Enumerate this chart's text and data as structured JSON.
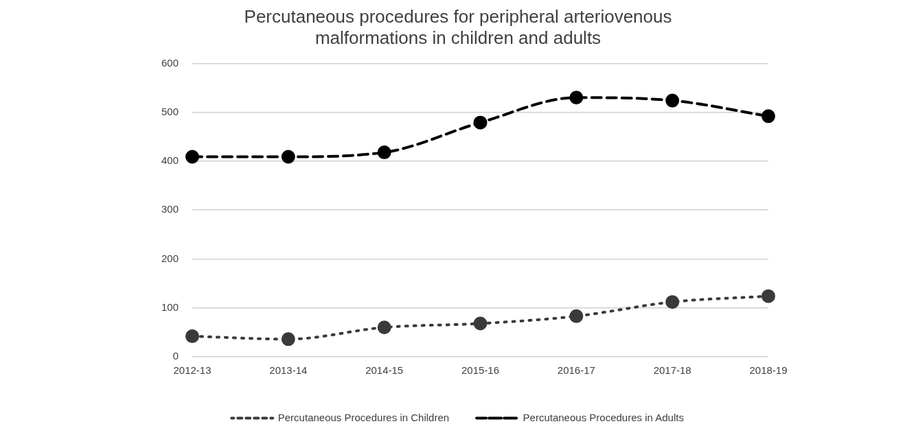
{
  "chart_data": {
    "type": "line",
    "title": "Percutaneous procedures for peripheral arteriovenous malformations in children and adults",
    "categories": [
      "2012-13",
      "2013-14",
      "2014-15",
      "2015-16",
      "2016-17",
      "2017-18",
      "2018-19"
    ],
    "series": [
      {
        "name": "Percutaneous Procedures in Children",
        "color": "#3a3a3a",
        "line_style": "dotted",
        "values": [
          42,
          36,
          60,
          68,
          83,
          112,
          124
        ]
      },
      {
        "name": "Percutaneous Procedures in Adults",
        "color": "#000000",
        "line_style": "dashed",
        "values": [
          409,
          409,
          418,
          479,
          530,
          524,
          492
        ]
      }
    ],
    "ylim": [
      0,
      600
    ],
    "yticks": [
      0,
      100,
      200,
      300,
      400,
      500,
      600
    ],
    "grid": "y",
    "legend": "bottom",
    "marker": "circle"
  }
}
